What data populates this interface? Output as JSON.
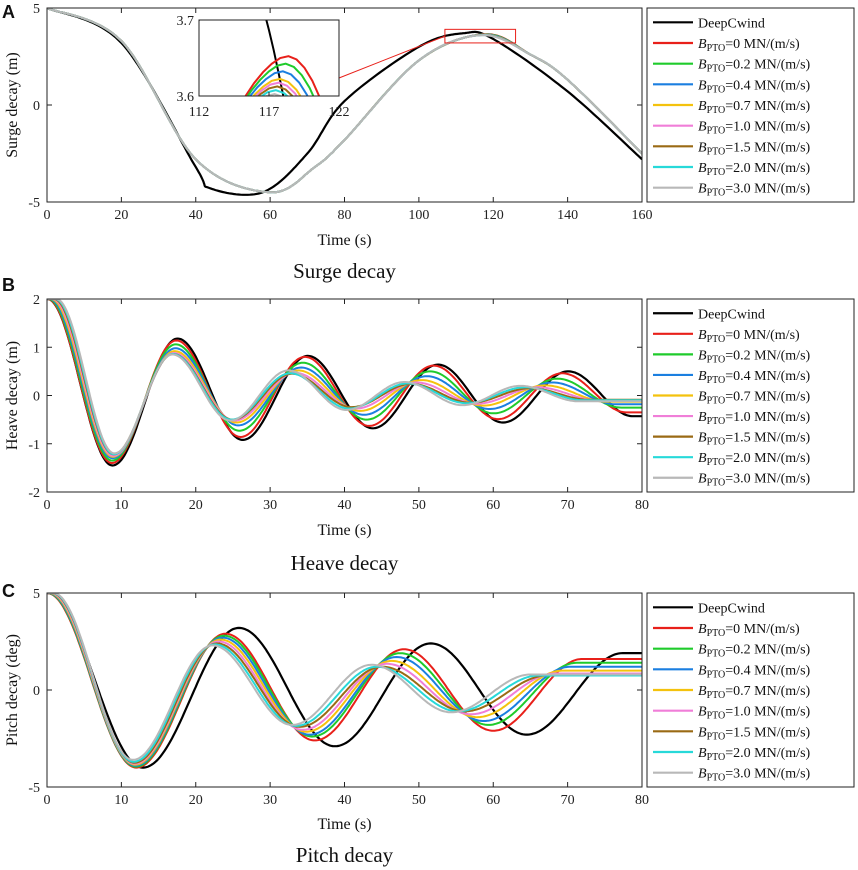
{
  "chart_data": [
    {
      "panel": "A",
      "type": "line",
      "caption": "Surge decay",
      "xlabel": "Time (s)",
      "ylabel": "Surge decay (m)",
      "xlim": [
        0,
        160
      ],
      "ylim": [
        -5,
        5
      ],
      "xticks": [
        0,
        20,
        40,
        60,
        80,
        100,
        120,
        140,
        160
      ],
      "yticks": [
        -5,
        0,
        5
      ],
      "legend_position": "outside-right",
      "series": [
        {
          "name": "DeepCwind",
          "color": "#000000",
          "points": [
            [
              0,
              5
            ],
            [
              20,
              3.2
            ],
            [
              40,
              -3.2
            ],
            [
              44,
              -4.3
            ],
            [
              58,
              -4.5
            ],
            [
              70,
              -2.5
            ],
            [
              80,
              0.2
            ],
            [
              100,
              3
            ],
            [
              112,
              3.7
            ],
            [
              120,
              3.4
            ],
            [
              140,
              0.7
            ],
            [
              160,
              -2.8
            ]
          ]
        },
        {
          "name": "BPTO=0 MN/(m/s)",
          "color": "#e8201a",
          "points": [
            [
              0,
              5
            ],
            [
              20,
              3.3
            ],
            [
              40,
              -2.8
            ],
            [
              60,
              -4.5
            ],
            [
              72,
              -3.2
            ],
            [
              80,
              -1.8
            ],
            [
              100,
              2.3
            ],
            [
              117.8,
              3.65
            ],
            [
              130,
              2.6
            ],
            [
              140,
              1.3
            ],
            [
              160,
              -2.5
            ]
          ]
        },
        {
          "name": "BPTO=0.2 MN/(m/s)",
          "color": "#1fcb2b",
          "points": [
            [
              0,
              5
            ],
            [
              20,
              3.3
            ],
            [
              40,
              -2.8
            ],
            [
              60,
              -4.5
            ],
            [
              72,
              -3.2
            ],
            [
              80,
              -1.8
            ],
            [
              100,
              2.3
            ],
            [
              117.6,
              3.64
            ],
            [
              130,
              2.6
            ],
            [
              140,
              1.3
            ],
            [
              160,
              -2.5
            ]
          ]
        },
        {
          "name": "BPTO=0.4 MN/(m/s)",
          "color": "#1b7fe0",
          "points": [
            [
              0,
              5
            ],
            [
              20,
              3.3
            ],
            [
              40,
              -2.8
            ],
            [
              60,
              -4.5
            ],
            [
              72,
              -3.2
            ],
            [
              80,
              -1.8
            ],
            [
              100,
              2.3
            ],
            [
              117.4,
              3.63
            ],
            [
              130,
              2.6
            ],
            [
              140,
              1.3
            ],
            [
              160,
              -2.5
            ]
          ]
        },
        {
          "name": "BPTO=0.7 MN/(m/s)",
          "color": "#f4c20d",
          "points": [
            [
              0,
              5
            ],
            [
              20,
              3.3
            ],
            [
              40,
              -2.8
            ],
            [
              60,
              -4.5
            ],
            [
              72,
              -3.2
            ],
            [
              80,
              -1.8
            ],
            [
              100,
              2.3
            ],
            [
              117.2,
              3.62
            ],
            [
              130,
              2.6
            ],
            [
              140,
              1.3
            ],
            [
              160,
              -2.5
            ]
          ]
        },
        {
          "name": "BPTO=1.0 MN/(m/s)",
          "color": "#f07ed8",
          "points": [
            [
              0,
              5
            ],
            [
              20,
              3.3
            ],
            [
              40,
              -2.8
            ],
            [
              60,
              -4.5
            ],
            [
              72,
              -3.2
            ],
            [
              80,
              -1.8
            ],
            [
              100,
              2.3
            ],
            [
              117.1,
              3.615
            ],
            [
              130,
              2.6
            ],
            [
              140,
              1.3
            ],
            [
              160,
              -2.5
            ]
          ]
        },
        {
          "name": "BPTO=1.5 MN/(m/s)",
          "color": "#9a6a14",
          "points": [
            [
              0,
              5
            ],
            [
              20,
              3.3
            ],
            [
              40,
              -2.8
            ],
            [
              60,
              -4.5
            ],
            [
              72,
              -3.2
            ],
            [
              80,
              -1.8
            ],
            [
              100,
              2.3
            ],
            [
              117,
              3.61
            ],
            [
              130,
              2.6
            ],
            [
              140,
              1.3
            ],
            [
              160,
              -2.5
            ]
          ]
        },
        {
          "name": "BPTO=2.0 MN/(m/s)",
          "color": "#27d9d9",
          "points": [
            [
              0,
              5
            ],
            [
              20,
              3.3
            ],
            [
              40,
              -2.8
            ],
            [
              60,
              -4.5
            ],
            [
              72,
              -3.2
            ],
            [
              80,
              -1.8
            ],
            [
              100,
              2.3
            ],
            [
              116.9,
              3.605
            ],
            [
              130,
              2.6
            ],
            [
              140,
              1.3
            ],
            [
              160,
              -2.5
            ]
          ]
        },
        {
          "name": "BPTO=3.0 MN/(m/s)",
          "color": "#b8b8b8",
          "points": [
            [
              0,
              5
            ],
            [
              20,
              3.3
            ],
            [
              40,
              -2.8
            ],
            [
              60,
              -4.5
            ],
            [
              72,
              -3.2
            ],
            [
              80,
              -1.8
            ],
            [
              100,
              2.3
            ],
            [
              116.8,
              3.6
            ],
            [
              130,
              2.6
            ],
            [
              140,
              1.3
            ],
            [
              160,
              -2.5
            ]
          ]
        }
      ],
      "inset": {
        "xlim": [
          112,
          122
        ],
        "ylim": [
          3.6,
          3.7
        ],
        "xticks": [
          112,
          117,
          122
        ],
        "yticks": [
          3.6,
          3.7
        ],
        "zoom_box_x": [
          107,
          126
        ],
        "zoom_box_y": [
          3.2,
          3.9
        ]
      }
    },
    {
      "panel": "B",
      "type": "line",
      "caption": "Heave decay",
      "xlabel": "Time (s)",
      "ylabel": "Heave decay (m)",
      "xlim": [
        0,
        80
      ],
      "ylim": [
        -2,
        2
      ],
      "xticks": [
        0,
        10,
        20,
        30,
        40,
        50,
        60,
        70,
        80
      ],
      "yticks": [
        -2,
        -1,
        0,
        1,
        2
      ],
      "legend_position": "outside-right",
      "series": [
        {
          "name": "DeepCwind",
          "color": "#000000",
          "a": [
            -1.45,
            1.18,
            -0.92,
            0.82,
            -0.68,
            0.64,
            -0.56,
            0.5,
            -0.43
          ],
          "p": 17.5,
          "d": 0.06
        },
        {
          "name": "BPTO=0 MN/(m/s)",
          "color": "#e8201a",
          "a": [
            -1.4,
            1.14,
            -0.86,
            0.8,
            -0.63,
            0.62,
            -0.49,
            0.46,
            -0.35
          ],
          "p": 17.3,
          "d": 0.08
        },
        {
          "name": "BPTO=0.2 MN/(m/s)",
          "color": "#1fcb2b",
          "a": [
            -1.35,
            1.06,
            -0.73,
            0.68,
            -0.5,
            0.5,
            -0.37,
            0.35,
            -0.25
          ],
          "p": 17.1,
          "d": 0.2
        },
        {
          "name": "BPTO=0.4 MN/(m/s)",
          "color": "#1b7fe0",
          "a": [
            -1.3,
            0.98,
            -0.62,
            0.58,
            -0.4,
            0.4,
            -0.28,
            0.27,
            -0.18
          ],
          "p": 16.9,
          "d": 0.35
        },
        {
          "name": "BPTO=0.7 MN/(m/s)",
          "color": "#f4c20d",
          "a": [
            -1.27,
            0.92,
            -0.56,
            0.52,
            -0.32,
            0.32,
            -0.21,
            0.21,
            -0.13
          ],
          "p": 16.6,
          "d": 0.55
        },
        {
          "name": "BPTO=1.0 MN/(m/s)",
          "color": "#f07ed8",
          "a": [
            -1.25,
            0.88,
            -0.52,
            0.47,
            -0.27,
            0.27,
            -0.17,
            0.17,
            -0.1
          ],
          "p": 16.3,
          "d": 0.75
        },
        {
          "name": "BPTO=1.5 MN/(m/s)",
          "color": "#9a6a14",
          "a": [
            -1.22,
            0.86,
            -0.5,
            0.45,
            -0.24,
            0.24,
            -0.15,
            0.15,
            -0.09
          ],
          "p": 16,
          "d": 0.95
        },
        {
          "name": "BPTO=2.0 MN/(m/s)",
          "color": "#27d9d9",
          "a": [
            -1.22,
            0.86,
            -0.5,
            0.46,
            -0.27,
            0.25,
            -0.16,
            0.17,
            -0.1
          ],
          "p": 15.8,
          "d": 1.1
        },
        {
          "name": "BPTO=3.0 MN/(m/s)",
          "color": "#b8b8b8",
          "a": [
            -1.2,
            0.85,
            -0.52,
            0.52,
            -0.3,
            0.28,
            -0.2,
            0.2,
            -0.12
          ],
          "p": 15.6,
          "d": 1.25
        }
      ]
    },
    {
      "panel": "C",
      "type": "line",
      "caption": "Pitch decay",
      "xlabel": "Time (s)",
      "ylabel": "Pitch decay (deg)",
      "xlim": [
        0,
        80
      ],
      "ylim": [
        -5,
        5
      ],
      "xticks": [
        0,
        10,
        20,
        30,
        40,
        50,
        60,
        70,
        80
      ],
      "yticks": [
        -5,
        0,
        5
      ],
      "legend_position": "outside-right",
      "series": [
        {
          "name": "DeepCwind",
          "color": "#000000",
          "a": [
            -4,
            3.2,
            -2.9,
            2.4,
            -2.3,
            1.9
          ],
          "p": 25.8,
          "d": 0
        },
        {
          "name": "BPTO=0 MN/(m/s)",
          "color": "#e8201a",
          "a": [
            -4,
            2.9,
            -2.6,
            2.1,
            -2.1,
            1.6
          ],
          "p": 24,
          "d": 0
        },
        {
          "name": "BPTO=0.2 MN/(m/s)",
          "color": "#1fcb2b",
          "a": [
            -3.95,
            2.8,
            -2.4,
            1.9,
            -1.8,
            1.4
          ],
          "p": 23.7,
          "d": 0.1
        },
        {
          "name": "BPTO=0.4 MN/(m/s)",
          "color": "#1b7fe0",
          "a": [
            -3.9,
            2.7,
            -2.3,
            1.7,
            -1.6,
            1.2
          ],
          "p": 23.4,
          "d": 0.2
        },
        {
          "name": "BPTO=0.7 MN/(m/s)",
          "color": "#f4c20d",
          "a": [
            -3.85,
            2.6,
            -2.15,
            1.5,
            -1.4,
            1.0
          ],
          "p": 23,
          "d": 0.35
        },
        {
          "name": "BPTO=1.0 MN/(m/s)",
          "color": "#f07ed8",
          "a": [
            -3.8,
            2.5,
            -2.05,
            1.35,
            -1.25,
            0.85
          ],
          "p": 22.6,
          "d": 0.5
        },
        {
          "name": "BPTO=1.5 MN/(m/s)",
          "color": "#9a6a14",
          "a": [
            -3.75,
            2.4,
            -1.9,
            1.2,
            -1.1,
            0.75
          ],
          "p": 22.2,
          "d": 0.65
        },
        {
          "name": "BPTO=2.0 MN/(m/s)",
          "color": "#27d9d9",
          "a": [
            -3.7,
            2.35,
            -1.85,
            1.2,
            -1.1,
            0.75
          ],
          "p": 21.8,
          "d": 0.75
        },
        {
          "name": "BPTO=3.0 MN/(m/s)",
          "color": "#b8b8b8",
          "a": [
            -3.6,
            2.3,
            -1.8,
            1.3,
            -1.15,
            0.8
          ],
          "p": 21.4,
          "d": 0.85
        }
      ]
    }
  ],
  "legend_labels": [
    {
      "main": "DeepCwind",
      "sub": ""
    },
    {
      "main": "B",
      "sub": "PTO",
      "rest": "=0 MN/(m/s)"
    },
    {
      "main": "B",
      "sub": "PTO",
      "rest": "=0.2 MN/(m/s)"
    },
    {
      "main": "B",
      "sub": "PTO",
      "rest": "=0.4 MN/(m/s)"
    },
    {
      "main": "B",
      "sub": "PTO",
      "rest": "=0.7 MN/(m/s)"
    },
    {
      "main": "B",
      "sub": "PTO",
      "rest": "=1.0 MN/(m/s)"
    },
    {
      "main": "B",
      "sub": "PTO",
      "rest": "=1.5 MN/(m/s)"
    },
    {
      "main": "B",
      "sub": "PTO",
      "rest": "=2.0 MN/(m/s)"
    },
    {
      "main": "B",
      "sub": "PTO",
      "rest": "=3.0 MN/(m/s)"
    }
  ]
}
